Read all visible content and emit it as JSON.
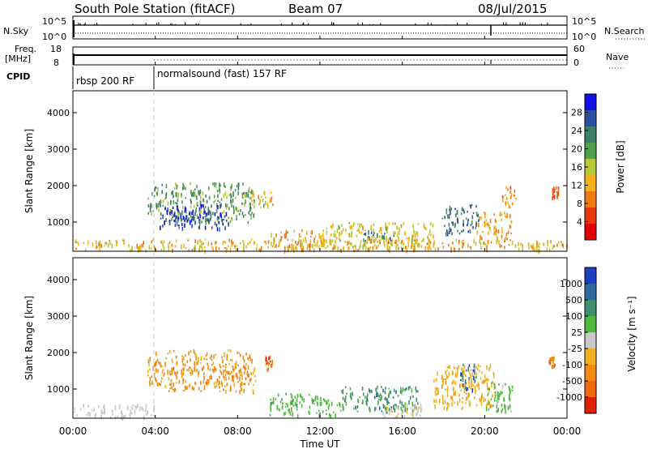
{
  "header": {
    "station": "South Pole Station (fitACF)",
    "beam": "Beam 07",
    "date": "08/Jul/2015"
  },
  "top_panels": {
    "nsky_label": "N.Sky",
    "nsearch_label": "N.Search",
    "nsky_ticks": [
      "10^5",
      "10^0"
    ],
    "nsearch_ticks": [
      "10^5",
      "10^0"
    ],
    "freq_label_1": "Freq.",
    "freq_label_2": "[MHz]",
    "freq_ticks": [
      "18",
      "8"
    ],
    "nave_label": "Nave",
    "nave_ticks": [
      "60",
      "0"
    ],
    "cpid_label": "CPID",
    "cpid_segments": [
      {
        "label": "rbsp 200 RF",
        "start_hour": 0,
        "end_hour": 3.95
      },
      {
        "label": "normalsound (fast) 157 RF",
        "start_hour": 3.95,
        "end_hour": 24
      }
    ]
  },
  "x_axis": {
    "label": "Time UT",
    "ticks": [
      "00:00",
      "04:00",
      "08:00",
      "12:00",
      "16:00",
      "20:00",
      "00:00"
    ],
    "range_hours": [
      0,
      24
    ]
  },
  "chart_data": [
    {
      "type": "heatmap",
      "panel": "power",
      "ylabel": "Slant Range [km]",
      "yticks": [
        "1000",
        "2000",
        "3000",
        "4000"
      ],
      "ylim": [
        200,
        4600
      ],
      "colorbar_label": "Power [dB]",
      "colorbar_ticks": [
        "4",
        "8",
        "12",
        "16",
        "20",
        "24",
        "28"
      ],
      "colorbar_colors": [
        "#1010e6",
        "#2b4fa0",
        "#3f7f6a",
        "#4f9f4f",
        "#b5c93a",
        "#f3b21b",
        "#f07a10",
        "#ea3a0c",
        "#e00000"
      ],
      "colorbar_range": [
        0,
        32
      ],
      "regions": [
        {
          "t0": 3.6,
          "t1": 8.8,
          "r0": 1000,
          "r1": 2100,
          "value": 20
        },
        {
          "t0": 4.2,
          "t1": 7.6,
          "r0": 850,
          "r1": 1500,
          "value": 28
        },
        {
          "t0": 8.6,
          "t1": 9.7,
          "r0": 1400,
          "r1": 1900,
          "value": 14
        },
        {
          "t0": 9.4,
          "t1": 12.2,
          "r0": 300,
          "r1": 800,
          "value": 12
        },
        {
          "t0": 12.0,
          "t1": 17.5,
          "r0": 300,
          "r1": 1000,
          "value": 14
        },
        {
          "t0": 14.0,
          "t1": 15.5,
          "r0": 450,
          "r1": 800,
          "value": 24
        },
        {
          "t0": 17.9,
          "t1": 19.7,
          "r0": 700,
          "r1": 1500,
          "value": 24
        },
        {
          "t0": 19.6,
          "t1": 21.3,
          "r0": 500,
          "r1": 1300,
          "value": 12
        },
        {
          "t0": 20.8,
          "t1": 21.5,
          "r0": 1400,
          "r1": 2000,
          "value": 10
        },
        {
          "t0": 23.2,
          "t1": 23.6,
          "r0": 1700,
          "r1": 2000,
          "value": 8
        },
        {
          "t0": 0.0,
          "t1": 24.0,
          "r0": 250,
          "r1": 550,
          "value": 12
        }
      ]
    },
    {
      "type": "heatmap",
      "panel": "velocity",
      "ylabel": "Slant Range [km]",
      "yticks": [
        "1000",
        "2000",
        "3000",
        "4000"
      ],
      "ylim": [
        200,
        4600
      ],
      "colorbar_label": "Velocity [m s⁻¹]",
      "colorbar_ticks": [
        "1000",
        "500",
        "100",
        "25",
        "-25",
        "-100",
        "-500",
        "-1000"
      ],
      "colorbar_colors": [
        "#1d3fc0",
        "#2f6a9e",
        "#3f8f6f",
        "#4fb83f",
        "#c8c8c8",
        "#f0b020",
        "#f08c10",
        "#f06a0c",
        "#e02000"
      ],
      "colorbar_range": [
        -1200,
        1200
      ],
      "regions": [
        {
          "t0": 3.6,
          "t1": 8.9,
          "r0": 950,
          "r1": 2100,
          "value": -500
        },
        {
          "t0": 9.3,
          "t1": 9.7,
          "r0": 1550,
          "r1": 1950,
          "value": -800
        },
        {
          "t0": 0.0,
          "t1": 4.0,
          "r0": 250,
          "r1": 600,
          "value": 50
        },
        {
          "t0": 9.5,
          "t1": 13.0,
          "r0": 300,
          "r1": 900,
          "value": 300
        },
        {
          "t0": 13.0,
          "t1": 16.8,
          "r0": 400,
          "r1": 1100,
          "value": 500
        },
        {
          "t0": 15.0,
          "t1": 17.0,
          "r0": 250,
          "r1": 650,
          "value": -100
        },
        {
          "t0": 17.5,
          "t1": 20.5,
          "r0": 500,
          "r1": 1700,
          "value": -300
        },
        {
          "t0": 18.8,
          "t1": 19.6,
          "r0": 1000,
          "r1": 1700,
          "value": 800
        },
        {
          "t0": 20.0,
          "t1": 21.4,
          "r0": 400,
          "r1": 1200,
          "value": 200
        },
        {
          "t0": 23.1,
          "t1": 23.4,
          "r0": 1600,
          "r1": 1900,
          "value": -600
        }
      ]
    }
  ]
}
